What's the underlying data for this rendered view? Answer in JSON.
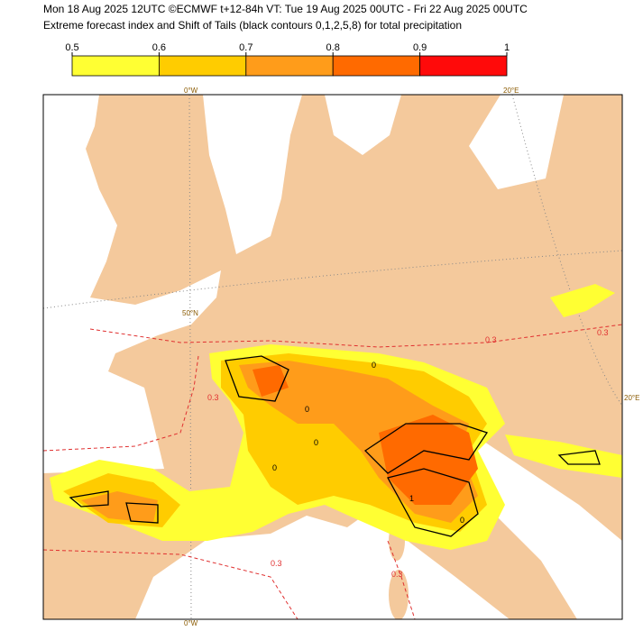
{
  "header": {
    "line1": "Mon 18 Aug 2025 12UTC ©ECMWF t+12-84h  VT: Tue 19 Aug 2025 00UTC - Fri 22 Aug 2025 00UTC",
    "line2": "Extreme forecast index and Shift of Tails (black contours 0,1,2,5,8) for total precipitation"
  },
  "colorbar": {
    "ticks": [
      0.5,
      0.6,
      0.7,
      0.8,
      0.9,
      1
    ],
    "colors": [
      "#ffff33",
      "#ffcc00",
      "#ff9c1a",
      "#ff6a00",
      "#ff0a0a"
    ]
  },
  "map_labels": {
    "top_lon_0": "0°W",
    "top_lon_20": "20°E",
    "lat_50": "50°N",
    "right_lon_20": "20°E",
    "bottom_lon_0": "0°W"
  },
  "contour_labels": [
    "0.3",
    "0.3",
    "0.3",
    "0.3",
    "0.3",
    "0",
    "0",
    "0",
    "0",
    "0",
    "1"
  ]
}
